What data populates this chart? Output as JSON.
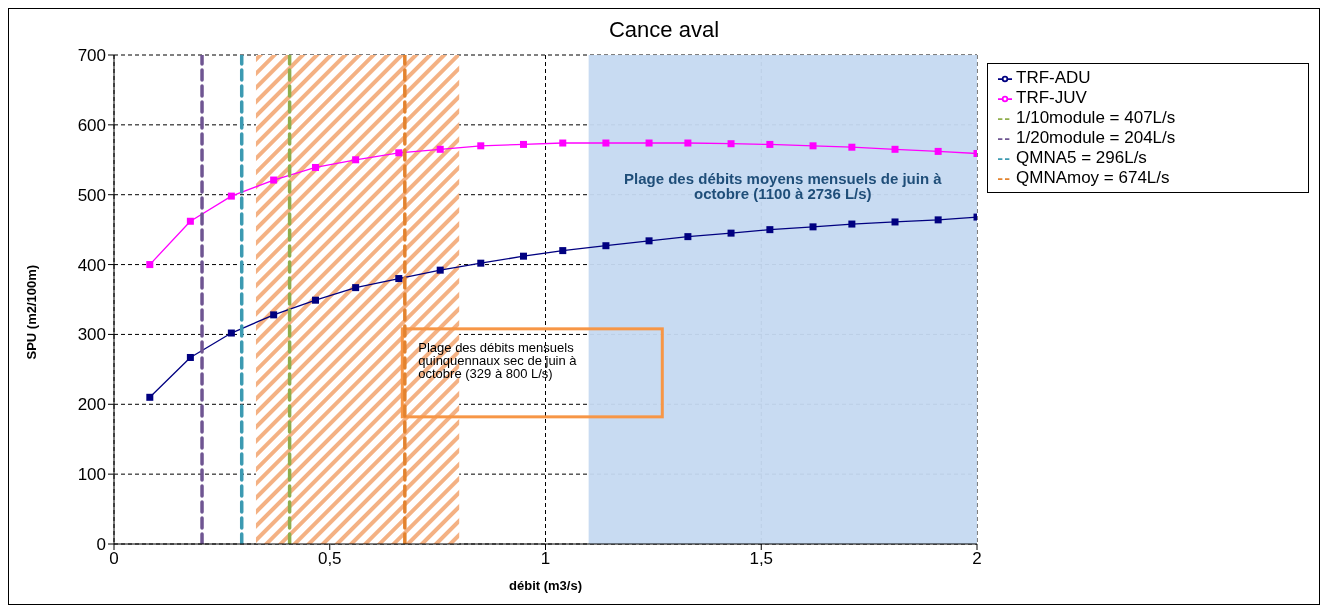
{
  "chart_data": {
    "type": "line",
    "title": "Cance aval",
    "xlabel": "débit (m3/s)",
    "ylabel": "SPU (m2/100m)",
    "xlim": [
      0,
      2
    ],
    "xticks": [
      0,
      {
        "value": 0.5,
        "label": "0,5"
      },
      1,
      {
        "value": 1.5,
        "label": "1,5"
      },
      2
    ],
    "ylim": [
      0,
      700
    ],
    "yticks": [
      0,
      100,
      200,
      300,
      400,
      500,
      600,
      700
    ],
    "grid": true,
    "legend": "right",
    "series": [
      {
        "name": "TRF-ADU",
        "color": "#000080",
        "marker": "square",
        "line_style": "solid",
        "x": [
          0.083,
          0.177,
          0.272,
          0.37,
          0.467,
          0.56,
          0.66,
          0.756,
          0.85,
          0.949,
          1.04,
          1.14,
          1.24,
          1.33,
          1.43,
          1.52,
          1.62,
          1.71,
          1.81,
          1.91,
          2.0
        ],
        "values": [
          210,
          267,
          302,
          328,
          349,
          367,
          380,
          392,
          402,
          412,
          420,
          427,
          434,
          440,
          445,
          450,
          454,
          458,
          461,
          464,
          468
        ]
      },
      {
        "name": "TRF-JUV",
        "color": "#ff00ff",
        "marker": "square",
        "line_style": "solid",
        "x": [
          0.083,
          0.177,
          0.272,
          0.37,
          0.467,
          0.56,
          0.66,
          0.756,
          0.85,
          0.949,
          1.04,
          1.14,
          1.24,
          1.33,
          1.43,
          1.52,
          1.62,
          1.71,
          1.81,
          1.91,
          2.0
        ],
        "values": [
          400,
          462,
          498,
          521,
          539,
          550,
          560,
          565,
          570,
          572,
          574,
          574,
          574,
          574,
          573,
          572,
          570,
          568,
          565,
          562,
          559
        ]
      },
      {
        "name": "1/10module = 407L/s",
        "color": "#8fae4c",
        "marker": "none",
        "line_style": "dashed",
        "x": [
          0.407,
          0.407
        ],
        "values": [
          0,
          700
        ]
      },
      {
        "name": "1/20module = 204L/s",
        "color": "#6f5592",
        "marker": "none",
        "line_style": "dashed",
        "x": [
          0.204,
          0.204
        ],
        "values": [
          0,
          700
        ]
      },
      {
        "name": "QMNA5 = 296L/s",
        "color": "#3c9ab2",
        "marker": "none",
        "line_style": "dashed",
        "x": [
          0.296,
          0.296
        ],
        "values": [
          0,
          700
        ]
      },
      {
        "name": "QMNAmoy = 674L/s",
        "color": "#e3832f",
        "marker": "none",
        "line_style": "dashed",
        "x": [
          0.674,
          0.674
        ],
        "values": [
          0,
          700
        ]
      }
    ],
    "bands": [
      {
        "axis": "x",
        "from": 0.329,
        "to": 0.8,
        "label": "Plage des débits mensuels quinquennaux sec de juin à octobre (329 à 800 L/s)",
        "color": "#f4b183"
      },
      {
        "axis": "x",
        "from": 1.1,
        "to": 2,
        "label": "Plage des débits moyens mensuels de juin à octobre (1100 à 2736 L/s)",
        "color": "#c5d9f1"
      }
    ]
  }
}
